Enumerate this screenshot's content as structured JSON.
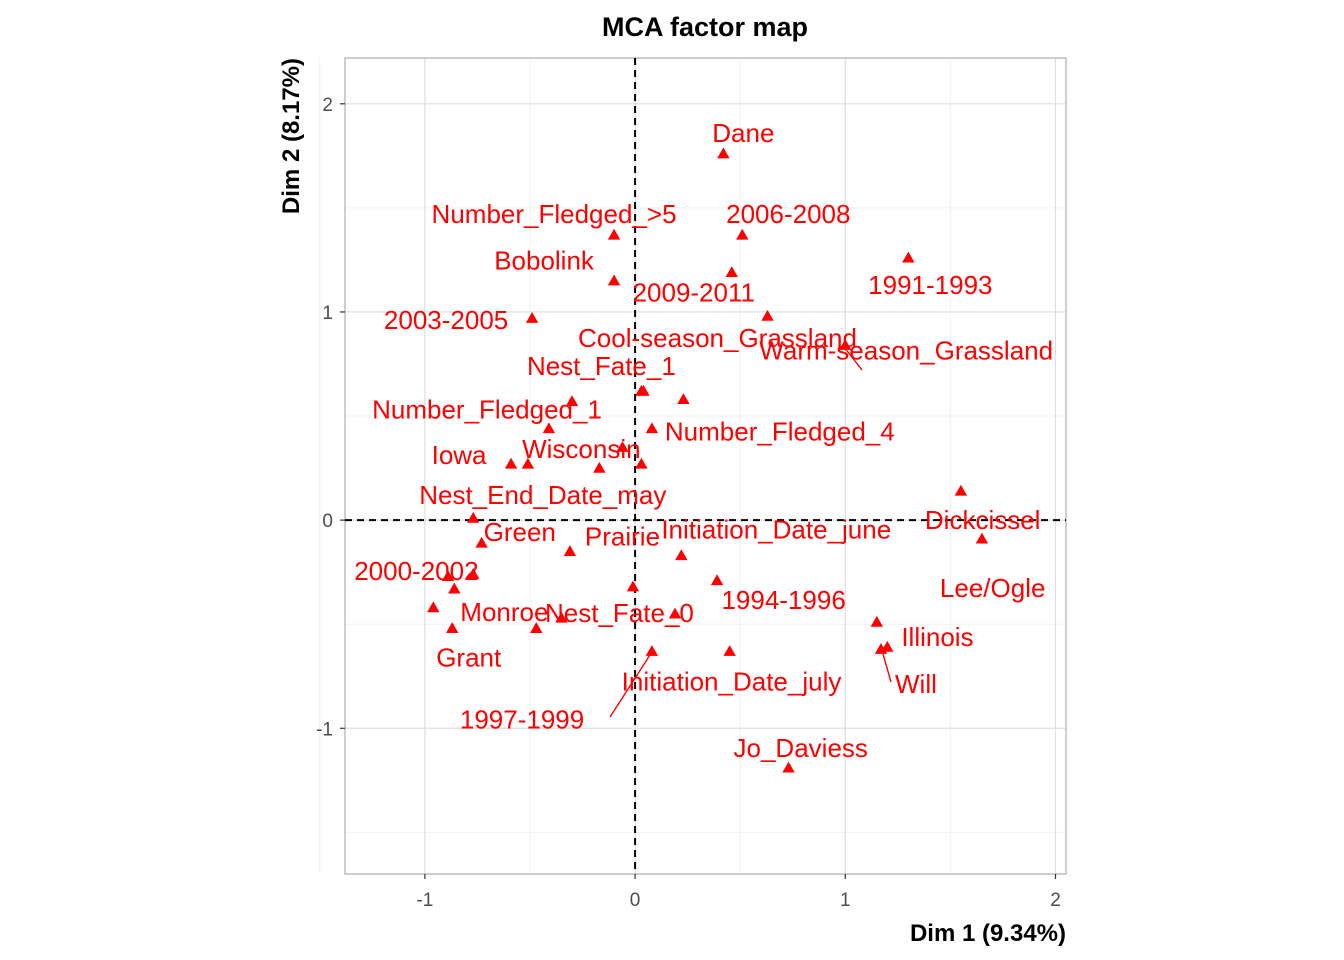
{
  "chart_data": {
    "type": "scatter",
    "title": "MCA factor map",
    "xlabel": "Dim 1 (9.34%)",
    "ylabel": "Dim 2 (8.17%)",
    "xlim": [
      -1.38,
      2.05
    ],
    "ylim": [
      -1.7,
      2.22
    ],
    "xticks": [
      -1,
      0,
      1,
      2
    ],
    "yticks": [
      -1,
      0,
      1,
      2
    ],
    "xtick_labels": [
      "-1",
      "0",
      "1",
      "2"
    ],
    "ytick_labels": [
      "-1",
      "0",
      "1",
      "2"
    ],
    "grid": true,
    "reference_lines": {
      "x": 0,
      "y": 0,
      "style": "dashed"
    },
    "marker": "triangle",
    "color": "#ff0000",
    "grid_major_color": "#dedede",
    "grid_minor_color": "#f0f0f0",
    "panel_border_color": "#b3b3b3",
    "points": [
      {
        "label": "Dane",
        "x": 0.42,
        "y": 1.76
      },
      {
        "label": "Number_Fledged_>5",
        "x": -0.1,
        "y": 1.37
      },
      {
        "label": "2006-2008",
        "x": 0.51,
        "y": 1.37
      },
      {
        "label": "1991-1993",
        "x": 1.3,
        "y": 1.26
      },
      {
        "label": "Bobolink",
        "x": -0.1,
        "y": 1.15
      },
      {
        "label": "2009-2011",
        "x": 0.46,
        "y": 1.19
      },
      {
        "label": "2003-2005",
        "x": -0.49,
        "y": 0.97
      },
      {
        "label": "Cool-season_Grassland",
        "x": 0.63,
        "y": 0.98
      },
      {
        "label": "Warm-season_Grassland",
        "x": 1.0,
        "y": 0.84
      },
      {
        "label": "Nest_Fate_1",
        "x": 0.03,
        "y": 0.62
      },
      {
        "label": "Number_Fledged_1",
        "x": -0.3,
        "y": 0.57
      },
      {
        "label": "Number_Fledged_4",
        "x": 0.08,
        "y": 0.44
      },
      {
        "label": "Iowa",
        "x": -0.59,
        "y": 0.27
      },
      {
        "label": "Wisconsin",
        "x": -0.17,
        "y": 0.25
      },
      {
        "label": "Nest_End_Date_may",
        "x": -0.77,
        "y": 0.01
      },
      {
        "label": "Dickcissel",
        "x": 1.55,
        "y": 0.14
      },
      {
        "label": "Green",
        "x": -0.73,
        "y": -0.11
      },
      {
        "label": "Prairie",
        "x": -0.31,
        "y": -0.15
      },
      {
        "label": "Initiation_Date_june",
        "x": 0.22,
        "y": -0.17
      },
      {
        "label": "Lee/Ogle",
        "x": 1.65,
        "y": -0.09
      },
      {
        "label": "2000-2002",
        "x": -0.77,
        "y": -0.26
      },
      {
        "label": "Monroe",
        "x": -0.86,
        "y": -0.33
      },
      {
        "label": "Nest_Fate_0",
        "x": 0.19,
        "y": -0.45
      },
      {
        "label": "1994-1996",
        "x": 1.15,
        "y": -0.49
      },
      {
        "label": "Illinois",
        "x": 1.2,
        "y": -0.61
      },
      {
        "label": "Will",
        "x": 1.17,
        "y": -0.62
      },
      {
        "label": "Grant",
        "x": -0.87,
        "y": -0.52
      },
      {
        "label": "Initiation_Date_july",
        "x": 0.45,
        "y": -0.63
      },
      {
        "label": "1997-1999",
        "x": 0.08,
        "y": -0.63
      },
      {
        "label": "Jo_Daviess",
        "x": 0.73,
        "y": -1.19
      }
    ],
    "unlabeled_points": [
      {
        "x": 0.23,
        "y": 0.58
      },
      {
        "x": 0.04,
        "y": 0.62
      },
      {
        "x": -0.41,
        "y": 0.44
      },
      {
        "x": -0.51,
        "y": 0.27
      },
      {
        "x": 0.03,
        "y": 0.27
      },
      {
        "x": -0.06,
        "y": 0.35
      },
      {
        "x": -0.89,
        "y": -0.27
      },
      {
        "x": -0.96,
        "y": -0.42
      },
      {
        "x": -0.47,
        "y": -0.52
      },
      {
        "x": -0.35,
        "y": -0.47
      },
      {
        "x": -0.01,
        "y": -0.32
      },
      {
        "x": 0.39,
        "y": -0.29
      }
    ]
  }
}
